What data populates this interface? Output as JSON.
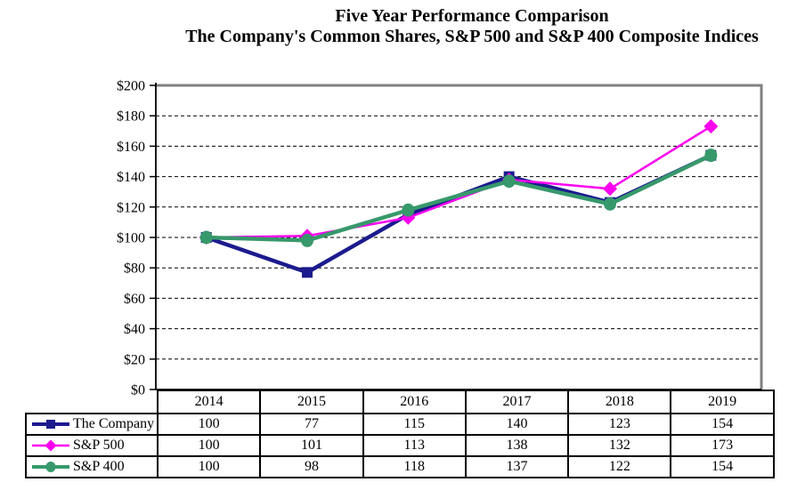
{
  "title": {
    "line1": "Five Year Performance Comparison",
    "line2": "The Company's Common Shares, S&P 500 and S&P 400 Composite Indices"
  },
  "chart_data": {
    "type": "line",
    "title": "Five Year Performance Comparison",
    "subtitle": "The Company's Common Shares, S&P 500 and S&P 400 Composite Indices",
    "categories": [
      "2014",
      "2015",
      "2016",
      "2017",
      "2018",
      "2019"
    ],
    "series": [
      {
        "name": "The Company",
        "values": [
          100,
          77,
          115,
          140,
          123,
          154
        ],
        "color": "#1b1b8e",
        "marker": "square",
        "line_width": 4.5
      },
      {
        "name": "S&P 500",
        "values": [
          100,
          101,
          113,
          138,
          132,
          173
        ],
        "color": "#fb00f0",
        "marker": "diamond",
        "line_width": 2.5
      },
      {
        "name": "S&P 400",
        "values": [
          100,
          98,
          118,
          137,
          122,
          154
        ],
        "color": "#37996b",
        "marker": "circle",
        "line_width": 4.5
      }
    ],
    "ylim": [
      0,
      200
    ],
    "y_tick_values": [
      0,
      20,
      40,
      60,
      80,
      100,
      120,
      140,
      160,
      180,
      200
    ],
    "y_tick_labels": [
      "$0",
      "$20",
      "$40",
      "$60",
      "$80",
      "$100",
      "$120",
      "$140",
      "$160",
      "$180",
      "$200"
    ],
    "xlabel": "",
    "ylabel": "",
    "grid": "horizontal-dashed",
    "legend_position": "table-left-of-data-table"
  },
  "colors": {
    "plot_border_gray": "#808080",
    "axis_black": "#000000",
    "gridline": "#000000",
    "table_border": "#000000",
    "background": "#ffffff",
    "text": "#000000"
  }
}
